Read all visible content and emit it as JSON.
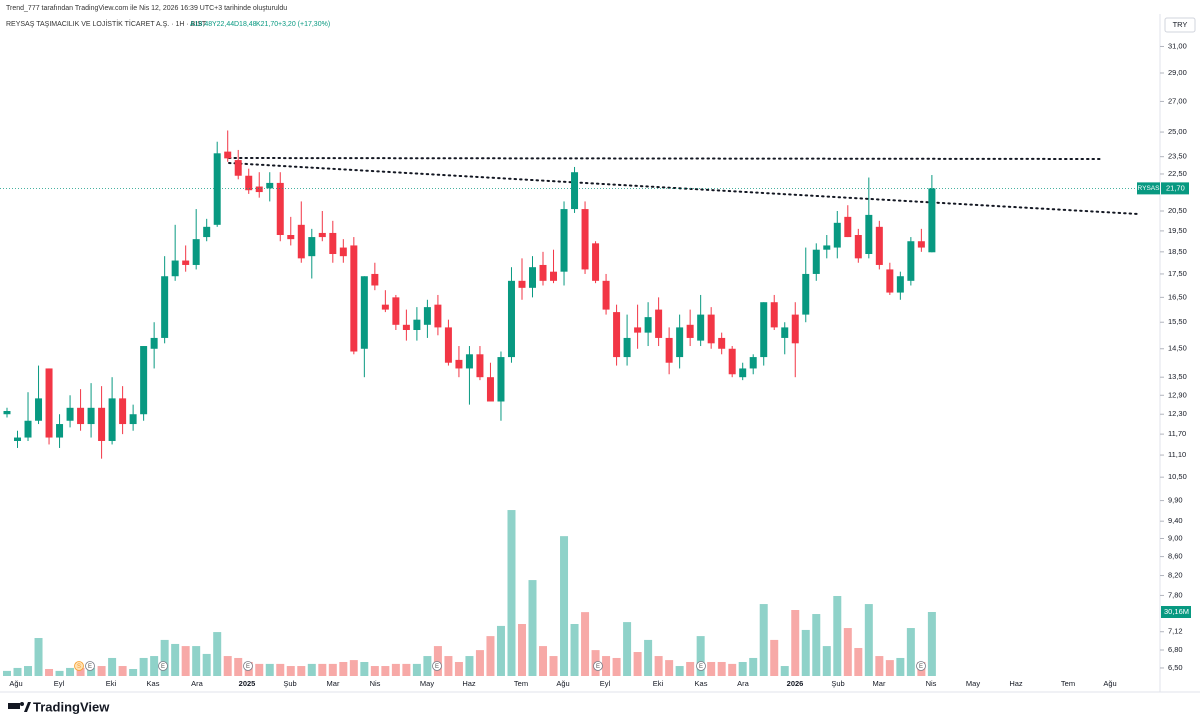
{
  "header": {
    "credit": "Trend_777 tarafından TradingView.com ile Nis 12, 2026 16:39 UTC+3 tarihinde oluşturuldu",
    "symbol": "REYSAŞ TAŞIMACILIK VE LOJİSTİK TİCARET A.Ş. · 1H · BIST",
    "ohlc": [
      "A18,48",
      "Y22,44",
      "D18,48",
      "K21,70"
    ],
    "change": "+3,20 (+17,30%)",
    "currency": "TRY"
  },
  "markers": [
    "S",
    "E",
    "E",
    "E",
    "E",
    "E",
    "E",
    "E"
  ],
  "footer": "TradingView",
  "chart_data": {
    "type": "candlestick",
    "open": [
      12.3,
      11.5,
      11.6,
      12.1,
      13.8,
      11.6,
      12.1,
      12.5,
      12.0,
      12.5,
      11.5,
      12.8,
      12.0,
      12.3,
      14.5,
      14.9,
      17.4,
      18.1,
      17.9,
      19.2,
      19.8,
      23.8,
      23.3,
      22.4,
      21.8,
      21.7,
      22.0,
      19.3,
      19.8,
      18.3,
      19.4,
      19.4,
      18.7,
      18.8,
      14.5,
      17.5,
      16.2,
      16.5,
      15.4,
      15.2,
      15.4,
      16.2,
      15.3,
      14.1,
      13.8,
      14.3,
      13.5,
      12.7,
      14.2,
      17.2,
      16.9,
      17.9,
      17.6,
      17.6,
      20.6,
      20.6,
      18.9,
      17.2,
      15.9,
      14.2,
      15.3,
      15.1,
      16.0,
      14.9,
      14.2,
      15.4,
      14.8,
      15.8,
      14.9,
      14.5,
      13.5,
      13.8,
      14.2,
      16.3,
      14.9,
      15.8,
      15.8,
      17.5,
      18.6,
      18.7,
      20.2,
      19.3,
      18.4,
      19.7,
      17.7,
      16.7,
      17.2,
      19.0,
      18.48
    ],
    "high": [
      12.5,
      11.8,
      13.0,
      13.9,
      13.8,
      12.3,
      12.9,
      13.1,
      13.3,
      13.2,
      13.5,
      13.2,
      12.6,
      14.6,
      15.5,
      18.3,
      19.8,
      18.8,
      20.6,
      20.1,
      24.4,
      25.1,
      23.9,
      22.8,
      22.6,
      22.6,
      22.6,
      20.2,
      21.0,
      19.6,
      20.5,
      20.0,
      19.1,
      19.2,
      17.4,
      18.0,
      16.8,
      16.6,
      16.0,
      16.1,
      16.4,
      16.6,
      15.6,
      14.6,
      14.6,
      14.6,
      14.0,
      14.4,
      17.8,
      18.2,
      18.3,
      18.5,
      18.6,
      21.0,
      22.9,
      21.0,
      19.0,
      17.5,
      16.2,
      15.8,
      16.2,
      16.3,
      16.5,
      15.3,
      15.8,
      16.0,
      16.6,
      16.1,
      15.1,
      14.6,
      14.0,
      14.3,
      16.3,
      16.6,
      15.5,
      16.3,
      18.7,
      18.9,
      19.3,
      20.5,
      20.8,
      19.6,
      22.3,
      20.0,
      18.0,
      17.6,
      19.2,
      19.6,
      22.44
    ],
    "low": [
      12.2,
      11.3,
      11.5,
      12.0,
      11.4,
      11.3,
      11.9,
      11.8,
      11.6,
      11.0,
      11.4,
      11.7,
      11.8,
      12.1,
      13.8,
      14.7,
      17.2,
      17.6,
      17.7,
      19.0,
      19.7,
      23.2,
      22.2,
      21.4,
      21.2,
      21.0,
      19.0,
      18.8,
      18.0,
      17.3,
      19.0,
      18.0,
      18.0,
      14.3,
      13.5,
      16.8,
      15.9,
      15.2,
      14.8,
      14.8,
      14.9,
      15.0,
      13.9,
      13.5,
      12.6,
      13.4,
      12.7,
      12.1,
      14.0,
      16.4,
      16.5,
      17.0,
      17.1,
      17.0,
      20.4,
      17.5,
      17.1,
      15.8,
      13.9,
      13.9,
      14.5,
      14.6,
      14.6,
      13.6,
      13.8,
      14.6,
      14.6,
      14.5,
      14.3,
      13.5,
      13.4,
      13.6,
      13.9,
      15.2,
      14.3,
      13.5,
      15.5,
      17.2,
      18.2,
      18.2,
      19.2,
      18.0,
      18.2,
      17.7,
      16.6,
      16.4,
      17.0,
      18.5,
      18.48
    ],
    "close": [
      12.4,
      11.6,
      12.1,
      12.8,
      11.6,
      12.0,
      12.5,
      12.0,
      12.5,
      11.5,
      12.8,
      12.0,
      12.3,
      14.6,
      14.9,
      17.4,
      18.1,
      17.9,
      19.1,
      19.7,
      23.7,
      23.4,
      22.4,
      21.6,
      21.5,
      22.0,
      19.3,
      19.1,
      18.2,
      19.2,
      19.2,
      18.4,
      18.3,
      14.4,
      17.4,
      17.0,
      16.0,
      15.4,
      15.2,
      15.6,
      16.1,
      15.3,
      14.0,
      13.8,
      14.3,
      13.5,
      12.7,
      14.2,
      17.2,
      16.9,
      17.8,
      17.2,
      17.2,
      20.6,
      22.6,
      17.7,
      17.2,
      16.0,
      14.2,
      14.9,
      15.1,
      15.7,
      14.9,
      14.0,
      15.3,
      14.9,
      15.8,
      14.7,
      14.5,
      13.6,
      13.8,
      14.2,
      16.3,
      15.3,
      15.3,
      14.7,
      17.5,
      18.6,
      18.8,
      19.9,
      19.2,
      18.2,
      20.3,
      17.9,
      16.7,
      17.4,
      19.0,
      18.7,
      21.7
    ],
    "volume": [
      2.4,
      3.8,
      4.7,
      17.9,
      3.3,
      2.4,
      3.8,
      3.8,
      3.8,
      4.7,
      8.5,
      4.7,
      3.3,
      8.5,
      9.4,
      17.0,
      15.1,
      14.1,
      14.1,
      10.4,
      20.7,
      9.4,
      8.5,
      6.6,
      5.7,
      5.7,
      5.7,
      4.7,
      4.7,
      5.7,
      5.7,
      5.7,
      6.6,
      7.5,
      6.6,
      4.7,
      4.7,
      5.7,
      5.7,
      5.7,
      9.4,
      14.1,
      9.4,
      6.6,
      9.4,
      12.2,
      18.8,
      23.6,
      78.2,
      24.5,
      45.2,
      14.1,
      9.4,
      65.9,
      24.5,
      30.1,
      12.2,
      9.4,
      8.5,
      25.4,
      11.3,
      17.0,
      9.4,
      7.5,
      4.7,
      6.6,
      18.8,
      6.6,
      6.6,
      5.7,
      6.6,
      8.5,
      33.9,
      17.0,
      4.7,
      31.1,
      21.7,
      29.2,
      14.1,
      37.7,
      22.6,
      13.2,
      33.9,
      9.4,
      7.5,
      8.5,
      22.6,
      6.6,
      30.16
    ],
    "last_volume_label": "30,16M",
    "symbol_label": "RYSAS",
    "last_close_label": "21,70",
    "up_color": "#089981",
    "down_color": "#f23645",
    "volume_up_color": "#8fd2c9",
    "volume_down_color": "#f7a9a7",
    "log_scale": true,
    "grid": false,
    "ylim": [
      6.37,
      33.3
    ],
    "volume_ylim": [
      0,
      90
    ],
    "yticks": [
      {
        "value": 31,
        "label": "31,00"
      },
      {
        "value": 29,
        "label": "29,00"
      },
      {
        "value": 27,
        "label": "27,00"
      },
      {
        "value": 25,
        "label": "25,00"
      },
      {
        "value": 23.5,
        "label": "23,50"
      },
      {
        "value": 22.5,
        "label": "22,50"
      },
      {
        "value": 20.5,
        "label": "20,50"
      },
      {
        "value": 19.5,
        "label": "19,50"
      },
      {
        "value": 18.5,
        "label": "18,50"
      },
      {
        "value": 17.5,
        "label": "17,50"
      },
      {
        "value": 16.5,
        "label": "16,50"
      },
      {
        "value": 15.5,
        "label": "15,50"
      },
      {
        "value": 14.5,
        "label": "14,50"
      },
      {
        "value": 13.5,
        "label": "13,50"
      },
      {
        "value": 12.9,
        "label": "12,90"
      },
      {
        "value": 12.3,
        "label": "12,30"
      },
      {
        "value": 11.7,
        "label": "11,70"
      },
      {
        "value": 11.1,
        "label": "11,10"
      },
      {
        "value": 10.5,
        "label": "10,50"
      },
      {
        "value": 9.9,
        "label": "9,90"
      },
      {
        "value": 9.4,
        "label": "9,40"
      },
      {
        "value": 9,
        "label": "9,00"
      },
      {
        "value": 8.6,
        "label": "8,60"
      },
      {
        "value": 8.2,
        "label": "8,20"
      },
      {
        "value": 7.8,
        "label": "7,80"
      },
      {
        "value": 7.12,
        "label": "7,12"
      },
      {
        "value": 6.8,
        "label": "6,80"
      },
      {
        "value": 6.5,
        "label": "6,50"
      }
    ],
    "xtick_labels": [
      "Ağu",
      "Eyl",
      "Eki",
      "Kas",
      "Ara",
      "2025",
      "Şub",
      "Mar",
      "Nis",
      "May",
      "Haz",
      "Tem",
      "Ağu",
      "Eyl",
      "Eki",
      "Kas",
      "Ara",
      "2026",
      "Şub",
      "Mar",
      "Nis",
      "May",
      "Haz",
      "Tem",
      "Ağu"
    ]
  }
}
